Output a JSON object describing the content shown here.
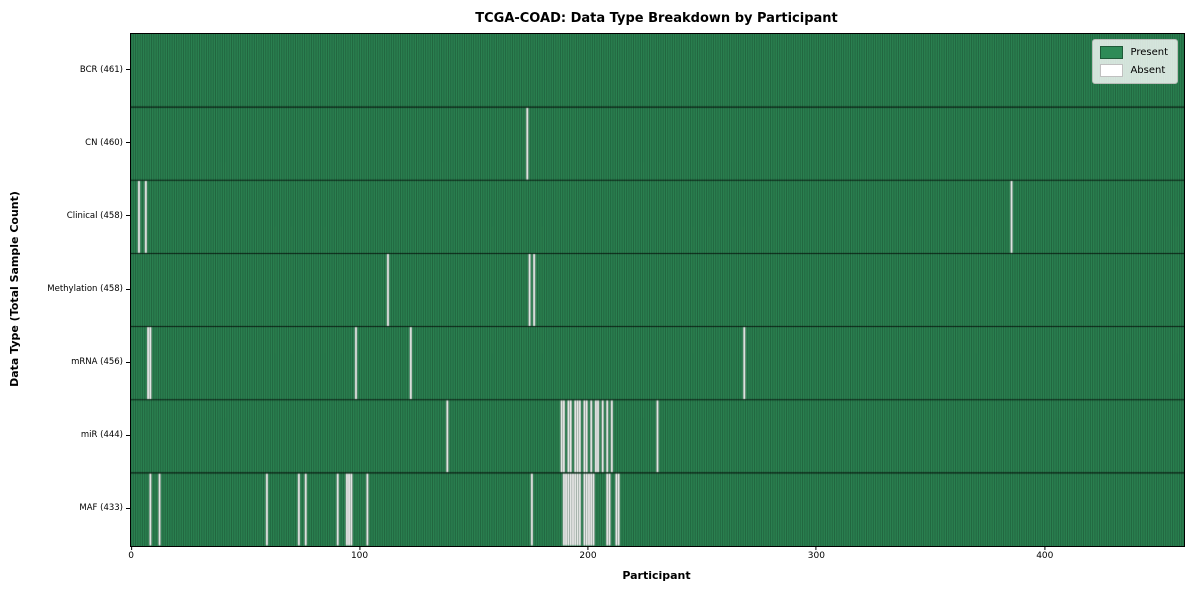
{
  "chart_data": {
    "type": "heatmap",
    "title": "TCGA-COAD: Data Type Breakdown by Participant",
    "xlabel": "Participant",
    "ylabel": "Data Type (Total Sample Count)",
    "n_participants": 461,
    "x_tick_values": [
      0,
      100,
      200,
      300,
      400
    ],
    "x_tick_labels": [
      "0",
      "100",
      "200",
      "300",
      "400"
    ],
    "legend": {
      "position": "upper right",
      "present_label": "Present",
      "absent_label": "Absent"
    },
    "colors": {
      "present": "#2e8b57",
      "absent": "#ffffff",
      "cell_edge": "rgba(0,0,0,0.5)",
      "row_separator": "rgba(0,0,0,0.75)",
      "plot_border": "#000000"
    },
    "rows": [
      {
        "data_type": "BCR",
        "label": "BCR (461)",
        "present_count": 461,
        "absent_participants": []
      },
      {
        "data_type": "CN",
        "label": "CN (460)",
        "present_count": 460,
        "absent_participants": [
          173
        ]
      },
      {
        "data_type": "Clinical",
        "label": "Clinical (458)",
        "present_count": 458,
        "absent_participants": [
          3,
          6,
          385
        ]
      },
      {
        "data_type": "Methylation",
        "label": "Methylation (458)",
        "present_count": 458,
        "absent_participants": [
          112,
          174,
          176
        ]
      },
      {
        "data_type": "mRNA",
        "label": "mRNA (456)",
        "present_count": 456,
        "absent_participants": [
          7,
          8,
          98,
          122,
          268
        ]
      },
      {
        "data_type": "miR",
        "label": "miR (444)",
        "present_count": 444,
        "absent_participants": [
          138,
          188,
          189,
          191,
          192,
          194,
          195,
          196,
          198,
          199,
          201,
          203,
          204,
          206,
          208,
          210,
          230
        ]
      },
      {
        "data_type": "MAF",
        "label": "MAF (433)",
        "present_count": 433,
        "absent_participants": [
          8,
          12,
          59,
          73,
          76,
          90,
          94,
          95,
          96,
          103,
          175,
          189,
          190,
          191,
          192,
          193,
          194,
          195,
          196,
          198,
          199,
          200,
          201,
          202,
          208,
          209,
          212,
          213
        ]
      }
    ]
  }
}
